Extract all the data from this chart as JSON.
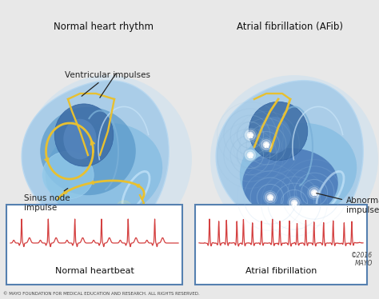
{
  "bg_color": "#e8e8e8",
  "title_left": "Normal heart rhythm",
  "title_right": "Atrial fibrillation (AFib)",
  "label_sinus": "Sinus node\nimpulse",
  "label_ventricular": "Ventricular impulses",
  "label_abnormal": "Abnormal\nimpulse",
  "ecg_left_label": "Normal heartbeat",
  "ecg_right_label": "Atrial fibrillation",
  "copyright": "©2016\nMAYO",
  "footer": "© MAYO FOUNDATION FOR MEDICAL EDUCATION AND RESEARCH. ALL RIGHTS RESERVED.",
  "ecg_color": "#d44040",
  "heart_outer": "#a8cce8",
  "heart_mid": "#78b0d8",
  "heart_inner": "#5090c0",
  "heart_dark": "#3870a8",
  "heart_cavity": "#4880b8",
  "gold": "#e8c030",
  "gold_bright": "#fff080",
  "white_glow": "#ffffff",
  "box_border": "#5580b0",
  "text_dark": "#111111",
  "text_gray": "#444444",
  "ann_color": "#222222",
  "bg_heart": "#d0e8f8"
}
